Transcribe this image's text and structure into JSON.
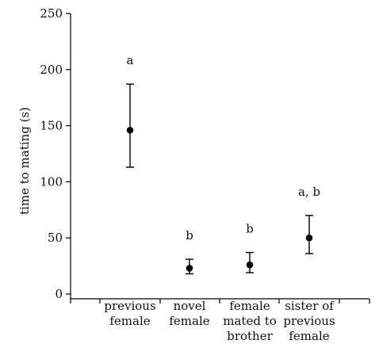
{
  "chart_data": {
    "type": "scatter",
    "title": "",
    "ylabel": "time to mating (s)",
    "xlabel": "",
    "ylim": [
      0,
      250
    ],
    "yticks": [
      0,
      50,
      100,
      150,
      200,
      250
    ],
    "grid": false,
    "categories": [
      [
        "previous",
        "female"
      ],
      [
        "novel",
        "female"
      ],
      [
        "female",
        "mated to",
        "brother"
      ],
      [
        "sister of",
        "previous",
        "female"
      ]
    ],
    "series": [
      {
        "values": [
          146,
          23,
          26,
          50
        ],
        "error_low": [
          113,
          18,
          19,
          36
        ],
        "error_high": [
          187,
          31,
          37,
          70
        ],
        "significance": [
          "a",
          "b",
          "b",
          "a, b"
        ]
      }
    ]
  }
}
